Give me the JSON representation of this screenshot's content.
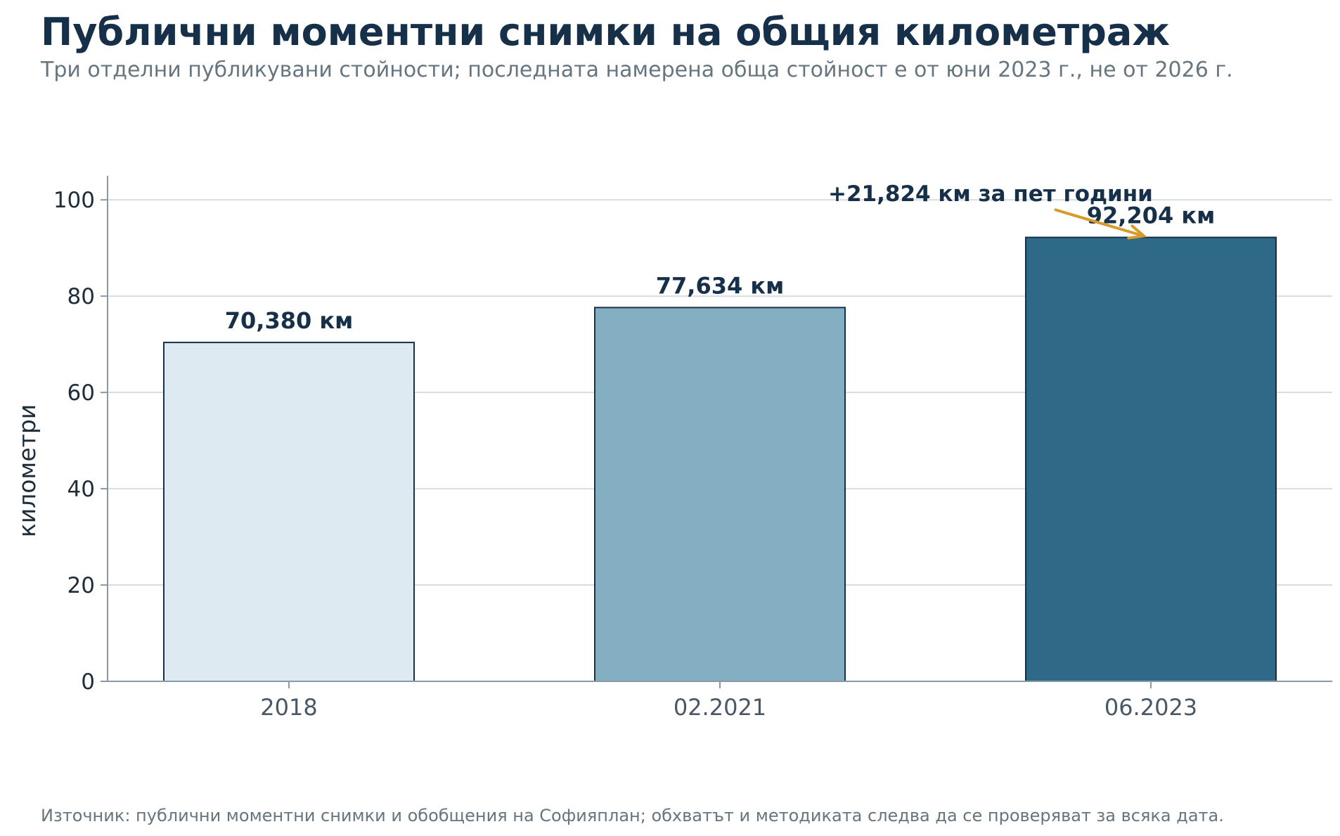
{
  "chart_data": {
    "type": "bar",
    "title": "Публични моментни снимки на общия километраж",
    "subtitle": "Три отделни публикувани стойности; последната намерена обща стойност е от юни 2023 г., не от 2026 г.",
    "source": "Източник: публични моментни снимки и обобщения на Софияплан; обхватът и методиката следва да се проверяват за всяка дата.",
    "ylabel": "километри",
    "xlabel": "",
    "categories": [
      "2018",
      "02.2021",
      "06.2023"
    ],
    "values": [
      70.38,
      77.634,
      92.204
    ],
    "value_labels": [
      "70,380 км",
      "77,634 км",
      "92,204 км"
    ],
    "bar_colors": [
      "#deeaf1",
      "#84aec1",
      "#2e6a88"
    ],
    "bar_edge_color": "#17304a",
    "yticks": [
      "0",
      "20",
      "40",
      "60",
      "80",
      "100"
    ],
    "ylim": [
      0,
      105
    ],
    "grid": true,
    "legend": "none",
    "annotation": {
      "text": "+21,824 км за пет години",
      "target_category": "06.2023",
      "target_value": 92.204,
      "arrow_color": "#d69b2a"
    }
  }
}
